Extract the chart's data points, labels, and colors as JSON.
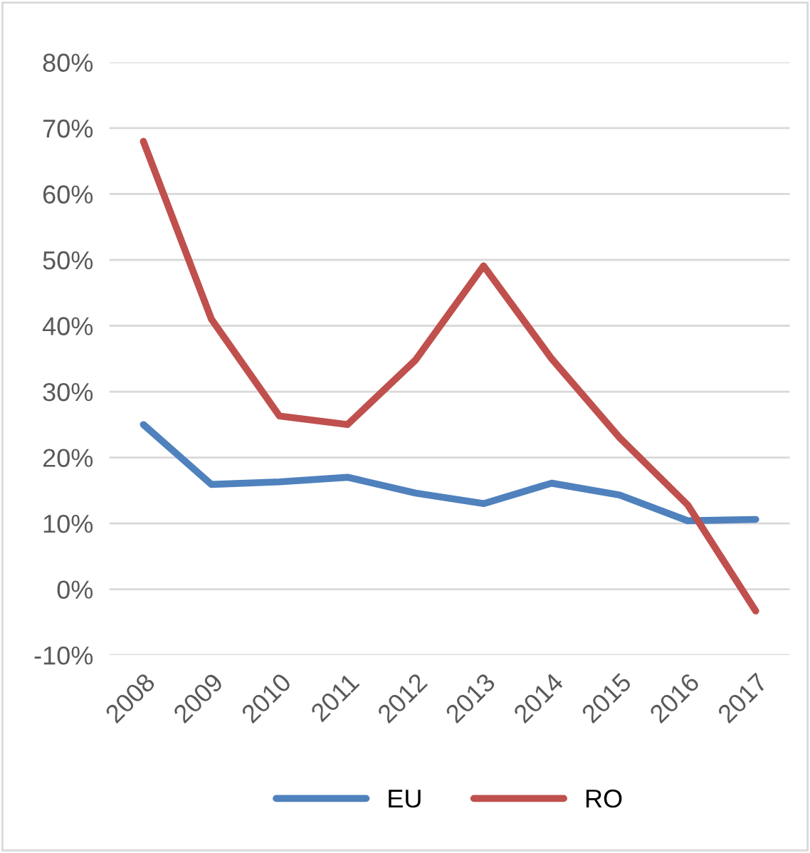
{
  "chart_data": {
    "type": "line",
    "categories": [
      "2008",
      "2009",
      "2010",
      "2011",
      "2012",
      "2013",
      "2014",
      "2015",
      "2016",
      "2017"
    ],
    "series": [
      {
        "name": "EU",
        "color": "#4f81bd",
        "values": [
          25,
          15.9,
          16.3,
          17,
          14.6,
          13,
          16.1,
          14.3,
          10.4,
          10.6
        ]
      },
      {
        "name": "RO",
        "color": "#c0504d",
        "values": [
          68,
          41,
          26.3,
          25,
          34.8,
          49.1,
          35,
          23,
          12.8,
          -3.3
        ]
      }
    ],
    "ylim": [
      -10,
      80
    ],
    "yticks": [
      {
        "value": -10,
        "label": "-10%"
      },
      {
        "value": 0,
        "label": "0%"
      },
      {
        "value": 10,
        "label": "10%"
      },
      {
        "value": 20,
        "label": "20%"
      },
      {
        "value": 30,
        "label": "30%"
      },
      {
        "value": 40,
        "label": "40%"
      },
      {
        "value": 50,
        "label": "50%"
      },
      {
        "value": 60,
        "label": "60%"
      },
      {
        "value": 70,
        "label": "70%"
      },
      {
        "value": 80,
        "label": "80%"
      }
    ],
    "grid": "y",
    "legend": "bottom",
    "marker": "none",
    "line_style": "solid"
  }
}
